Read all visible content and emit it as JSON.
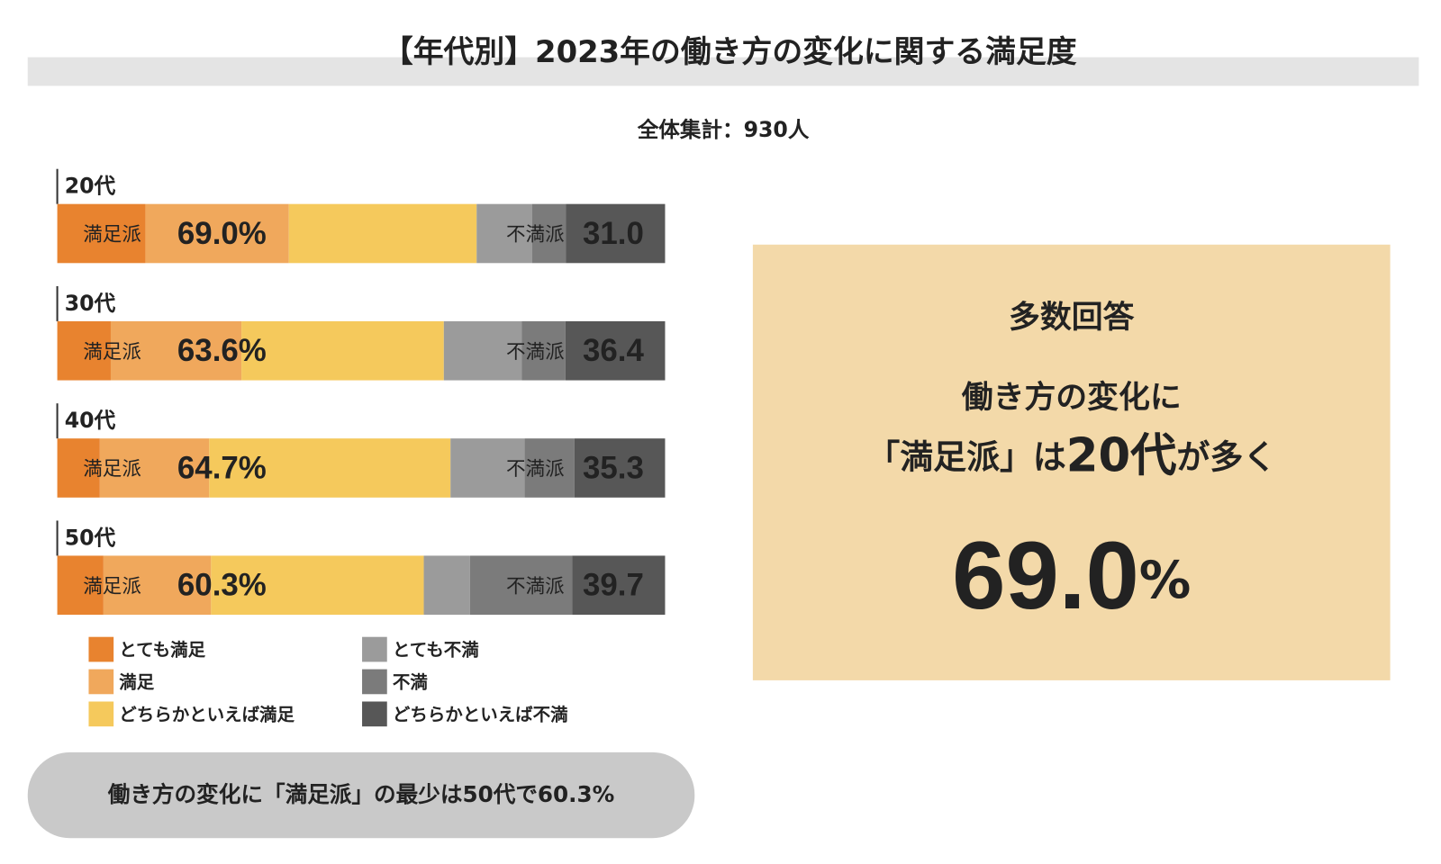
{
  "chart_data": {
    "type": "stacked-bar-horizontal",
    "title": "【年代別】2023年の働き方の変化に関する満足度",
    "subtitle": "全体集計：930人",
    "categories": [
      "20代",
      "30代",
      "40代",
      "50代"
    ],
    "xlim": [
      0,
      100
    ],
    "series": [
      {
        "name": "とても満足",
        "color": "#e8832f",
        "values": [
          14.5,
          8.8,
          7.0,
          7.6
        ]
      },
      {
        "name": "満足",
        "color": "#f0a85c",
        "values": [
          23.6,
          21.5,
          18.0,
          17.7
        ]
      },
      {
        "name": "どちらかといえば満足",
        "color": "#f5c95c",
        "values": [
          30.9,
          33.3,
          39.7,
          35.0
        ]
      },
      {
        "name": "とても不満",
        "color": "#9b9b9b",
        "values": [
          9.1,
          12.8,
          12.2,
          7.6
        ]
      },
      {
        "name": "不満",
        "color": "#7b7b7b",
        "values": [
          5.6,
          7.2,
          8.2,
          16.8
        ]
      },
      {
        "name": "どちらかといえば不満",
        "color": "#575757",
        "values": [
          16.3,
          16.4,
          14.9,
          15.3
        ]
      }
    ],
    "totals": {
      "satisfied": {
        "name": "満足派",
        "values": [
          69.0,
          63.6,
          64.7,
          60.3
        ],
        "value_labels": [
          "69.0%",
          "63.6%",
          "64.7%",
          "60.3%"
        ]
      },
      "dissatisfied": {
        "name": "不満派",
        "values": [
          31.0,
          36.4,
          35.3,
          39.7
        ],
        "value_labels": [
          "31.0",
          "36.4",
          "35.3",
          "39.7"
        ]
      }
    }
  },
  "callout": {
    "heading": "多数回答",
    "line1": "働き方の変化に",
    "line2_a": "「満足派」は",
    "line2_b": "20代",
    "line2_c": "が多く",
    "big_number": "69.0",
    "big_unit": "%"
  },
  "footer": "働き方の変化に「満足派」の最少は50代で60.3%"
}
